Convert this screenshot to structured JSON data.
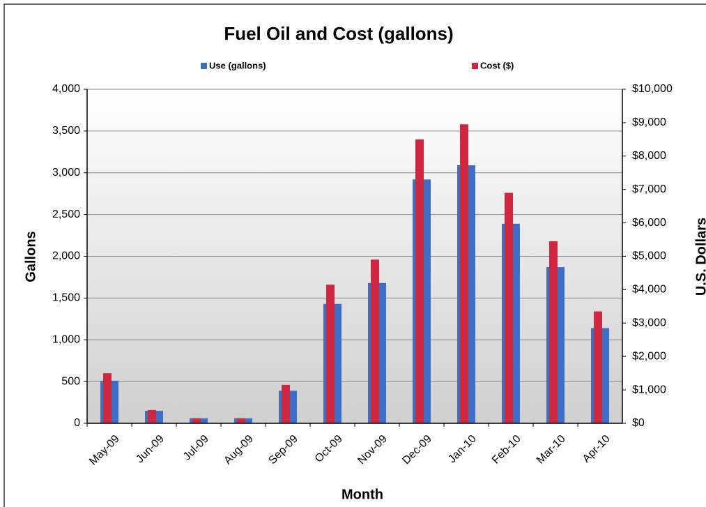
{
  "chart_data": {
    "type": "bar",
    "title": "Fuel Oil and Cost (gallons)",
    "x_label": "Month",
    "y_label": "Gallons",
    "y2_label": "U.S. Dollars",
    "categories": [
      "May-09",
      "Jun-09",
      "Jul-09",
      "Aug-09",
      "Sep-09",
      "Oct-09",
      "Nov-09",
      "Dec-09",
      "Jan-10",
      "Feb-10",
      "Mar-10",
      "Apr-10"
    ],
    "series": [
      {
        "name": "Use (gallons)",
        "color": "#3a6fc4",
        "values": [
          510,
          150,
          60,
          60,
          390,
          1430,
          1680,
          2920,
          3090,
          2390,
          1870,
          1140
        ]
      },
      {
        "name": "Cost ($)",
        "color": "#d0263f",
        "axis": "y2",
        "values": [
          1500,
          400,
          150,
          150,
          1150,
          4150,
          4900,
          8500,
          8950,
          6900,
          5450,
          3350
        ]
      }
    ],
    "ylim": [
      0,
      4000
    ],
    "yticks": [
      0,
      500,
      {
        "value": 1000,
        "label": "1,000"
      },
      {
        "value": 1500,
        "label": "1,500"
      },
      {
        "value": 2000,
        "label": "2,000"
      },
      {
        "value": 2500,
        "label": "2,500"
      },
      {
        "value": 3000,
        "label": "3,000"
      },
      {
        "value": 3500,
        "label": "3,500"
      },
      {
        "value": 4000,
        "label": "4,000"
      }
    ],
    "y2lim": [
      0,
      10000
    ],
    "y2ticks": [
      {
        "value": 0,
        "label": "$0"
      },
      {
        "value": 1000,
        "label": "$1,000"
      },
      {
        "value": 2000,
        "label": "$2,000"
      },
      {
        "value": 3000,
        "label": "$3,000"
      },
      {
        "value": 4000,
        "label": "$4,000"
      },
      {
        "value": 5000,
        "label": "$5,000"
      },
      {
        "value": 6000,
        "label": "$6,000"
      },
      {
        "value": 7000,
        "label": "$7,000"
      },
      {
        "value": 8000,
        "label": "$8,000"
      },
      {
        "value": 9000,
        "label": "$9,000"
      },
      {
        "value": 10000,
        "label": "$10,000"
      }
    ],
    "grid": true,
    "legend": "top"
  }
}
